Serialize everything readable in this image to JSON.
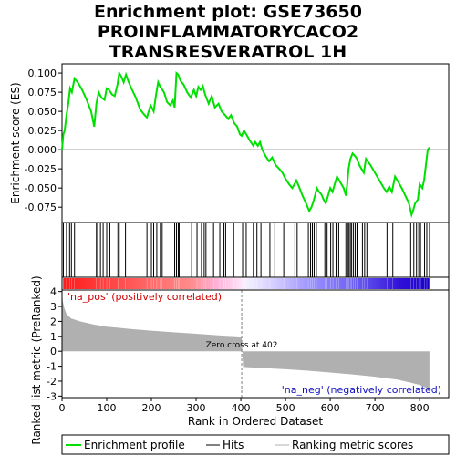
{
  "title_lines": [
    "Enrichment plot: GSE73650",
    "PROINFLAMMATORYCACO2",
    "TRANSRESVERATROL 1H"
  ],
  "colors": {
    "enrichment_line": "#00e000",
    "hits": "#000000",
    "metric_fill": "#b0b0b0",
    "pos_label": "#d00000",
    "neg_label": "#1010c0",
    "zero_line": "#808080"
  },
  "chart_data": [
    {
      "type": "line",
      "name": "enrichment-profile",
      "ylabel": "Enrichment score (ES)",
      "xlim": [
        0,
        865
      ],
      "ylim": [
        -0.095,
        0.112
      ],
      "yticks": [
        -0.075,
        -0.05,
        -0.025,
        0.0,
        0.025,
        0.05,
        0.075,
        0.1
      ],
      "ytick_labels": [
        "-0.075",
        "-0.050",
        "-0.025",
        "0.000",
        "0.025",
        "0.050",
        "0.075",
        "0.100"
      ],
      "x": [
        0,
        3,
        6,
        10,
        14,
        18,
        22,
        28,
        35,
        45,
        55,
        65,
        72,
        77,
        82,
        88,
        95,
        100,
        105,
        112,
        118,
        124,
        128,
        133,
        138,
        143,
        148,
        155,
        165,
        175,
        185,
        190,
        198,
        205,
        210,
        215,
        220,
        228,
        235,
        242,
        248,
        252,
        256,
        260,
        265,
        272,
        280,
        288,
        295,
        300,
        305,
        310,
        315,
        320,
        328,
        335,
        342,
        350,
        357,
        365,
        372,
        378,
        385,
        392,
        398,
        402,
        407,
        412,
        420,
        428,
        432,
        438,
        443,
        448,
        455,
        463,
        470,
        478,
        486,
        493,
        500,
        508,
        515,
        520,
        524,
        530,
        538,
        546,
        553,
        558,
        562,
        566,
        570,
        575,
        580,
        585,
        590,
        595,
        600,
        605,
        610,
        615,
        620,
        625,
        630,
        635,
        638,
        641,
        645,
        650,
        655,
        660,
        665,
        670,
        675,
        680,
        690,
        700,
        710,
        720,
        726,
        732,
        738,
        745,
        752,
        760,
        768,
        776,
        782,
        786,
        790,
        796,
        800,
        806,
        810,
        814,
        818,
        822
      ],
      "y": [
        0.0,
        0.02,
        0.025,
        0.045,
        0.06,
        0.08,
        0.075,
        0.093,
        0.088,
        0.078,
        0.065,
        0.05,
        0.03,
        0.06,
        0.075,
        0.068,
        0.065,
        0.08,
        0.078,
        0.072,
        0.07,
        0.085,
        0.1,
        0.095,
        0.088,
        0.098,
        0.09,
        0.08,
        0.068,
        0.052,
        0.045,
        0.042,
        0.058,
        0.05,
        0.07,
        0.088,
        0.082,
        0.075,
        0.062,
        0.058,
        0.064,
        0.055,
        0.1,
        0.098,
        0.09,
        0.085,
        0.075,
        0.068,
        0.078,
        0.07,
        0.082,
        0.078,
        0.083,
        0.072,
        0.06,
        0.07,
        0.055,
        0.06,
        0.05,
        0.045,
        0.04,
        0.045,
        0.035,
        0.03,
        0.02,
        0.018,
        0.025,
        0.02,
        0.012,
        0.005,
        0.01,
        0.005,
        0.01,
        0.0,
        -0.008,
        -0.015,
        -0.01,
        -0.02,
        -0.025,
        -0.03,
        -0.038,
        -0.045,
        -0.05,
        -0.045,
        -0.04,
        -0.048,
        -0.06,
        -0.07,
        -0.08,
        -0.075,
        -0.068,
        -0.06,
        -0.05,
        -0.055,
        -0.058,
        -0.065,
        -0.07,
        -0.06,
        -0.05,
        -0.055,
        -0.045,
        -0.035,
        -0.04,
        -0.045,
        -0.05,
        -0.06,
        -0.045,
        -0.025,
        -0.012,
        -0.005,
        -0.008,
        -0.012,
        -0.02,
        -0.025,
        -0.03,
        -0.012,
        -0.02,
        -0.03,
        -0.04,
        -0.05,
        -0.055,
        -0.048,
        -0.055,
        -0.035,
        -0.042,
        -0.05,
        -0.06,
        -0.07,
        -0.085,
        -0.078,
        -0.07,
        -0.065,
        -0.045,
        -0.05,
        -0.04,
        -0.02,
        0.0,
        0.003
      ]
    },
    {
      "type": "scatter",
      "name": "hits",
      "x": [
        3,
        10,
        17,
        21,
        28,
        77,
        80,
        86,
        92,
        100,
        107,
        125,
        128,
        142,
        190,
        200,
        205,
        212,
        220,
        224,
        252,
        256,
        260,
        262,
        290,
        302,
        312,
        318,
        322,
        339,
        353,
        362,
        366,
        384,
        404,
        412,
        428,
        436,
        445,
        465,
        476,
        496,
        521,
        526,
        551,
        556,
        560,
        564,
        569,
        588,
        593,
        601,
        606,
        613,
        619,
        635,
        639,
        642,
        645,
        648,
        652,
        656,
        660,
        672,
        677,
        682,
        727,
        740,
        780,
        787,
        793,
        798,
        802,
        811,
        816,
        822
      ]
    },
    {
      "type": "area",
      "name": "ranking-metric",
      "ylabel": "Ranked list metric (PreRanked)",
      "xlabel": "Rank in Ordered Dataset",
      "xlim": [
        0,
        865
      ],
      "ylim": [
        -3.1,
        4.1
      ],
      "yticks": [
        -3,
        -2,
        -1,
        0,
        1,
        2,
        3,
        4
      ],
      "ytick_labels": [
        "-3",
        "-2",
        "-1",
        "0",
        "1",
        "2",
        "3",
        "4"
      ],
      "xticks": [
        0,
        100,
        200,
        300,
        400,
        500,
        600,
        700,
        800
      ],
      "xtick_labels": [
        "0",
        "100",
        "200",
        "300",
        "400",
        "500",
        "600",
        "700",
        "800"
      ],
      "x": [
        0,
        2,
        5,
        10,
        20,
        40,
        70,
        100,
        150,
        200,
        250,
        300,
        350,
        400,
        402,
        405,
        450,
        500,
        550,
        600,
        650,
        700,
        750,
        780,
        800,
        815,
        822
      ],
      "y": [
        3.9,
        3.3,
        2.9,
        2.5,
        2.2,
        2.0,
        1.8,
        1.65,
        1.5,
        1.38,
        1.27,
        1.17,
        1.07,
        0.98,
        0.97,
        -1.05,
        -1.12,
        -1.2,
        -1.3,
        -1.42,
        -1.55,
        -1.7,
        -1.9,
        -2.1,
        -2.25,
        -2.45,
        -2.75
      ]
    }
  ],
  "annotations": {
    "pos_label": "'na_pos' (positively correlated)",
    "neg_label": "'na_neg' (negatively correlated)",
    "zero_cross_label": "Zero cross at 402",
    "zero_cross_rank": 402
  },
  "legend": {
    "items": [
      {
        "label": "Enrichment profile",
        "kind": "line",
        "color": "#00e000"
      },
      {
        "label": "Hits",
        "kind": "line",
        "color": "#000000"
      },
      {
        "label": "Ranking metric scores",
        "kind": "line",
        "color": "#b0b0b0"
      }
    ]
  }
}
